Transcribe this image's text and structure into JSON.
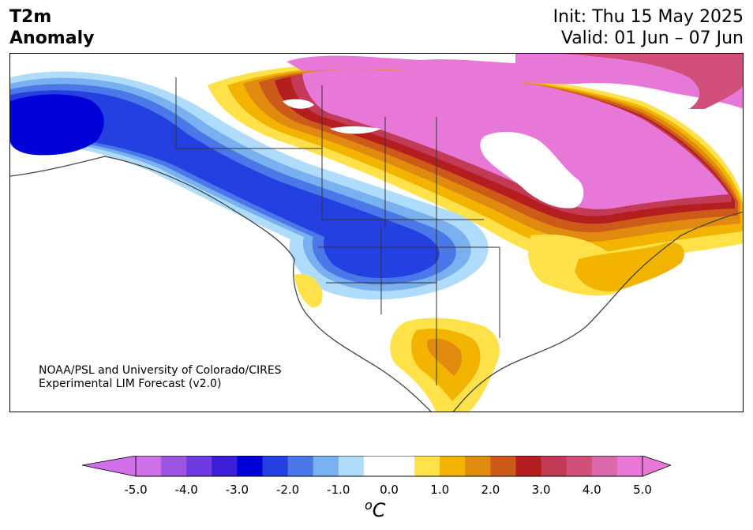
{
  "title": {
    "line1": "T2m",
    "line2": "Anomaly"
  },
  "forecast": {
    "init": "Init: Thu 15 May 2025",
    "valid": "Valid: 01 Jun – 07 Jun"
  },
  "credit": {
    "line1": "NOAA/PSL and University of Colorado/CIRES",
    "line2": "Experimental LIM Forecast (v2.0)"
  },
  "colorbar": {
    "unit_main": "o",
    "unit_sub": "C",
    "ticks": [
      "-5.0",
      "-4.0",
      "-3.0",
      "-2.0",
      "-1.0",
      "0.0",
      "1.0",
      "2.0",
      "3.0",
      "4.0",
      "5.0"
    ],
    "colors": [
      "#d070e8",
      "#9b55e0",
      "#6e3be0",
      "#3c1ed8",
      "#0000d8",
      "#2540e0",
      "#4a78e8",
      "#78b0f0",
      "#b0dcfc",
      "#ffffff",
      "#ffffff",
      "#ffe24a",
      "#f2b400",
      "#e08a10",
      "#cc5a18",
      "#b41e1e",
      "#c23a55",
      "#d0507a",
      "#dc68ac",
      "#e878d8"
    ],
    "under_color": "#d070e8",
    "over_color": "#e878d8"
  },
  "anomaly_colors": {
    "cold_5": "#0000d8",
    "cold_4": "#2540e0",
    "cold_3": "#4a78e8",
    "cold_2": "#78b0f0",
    "cold_1": "#b0dcfc",
    "warm_1": "#ffe24a",
    "warm_2": "#f2b400",
    "warm_3": "#e08a10",
    "warm_4": "#cc5a18",
    "warm_5": "#b41e1e",
    "warm_6": "#c23a55",
    "warm_7": "#d0507a",
    "warm_8": "#e878d8"
  }
}
